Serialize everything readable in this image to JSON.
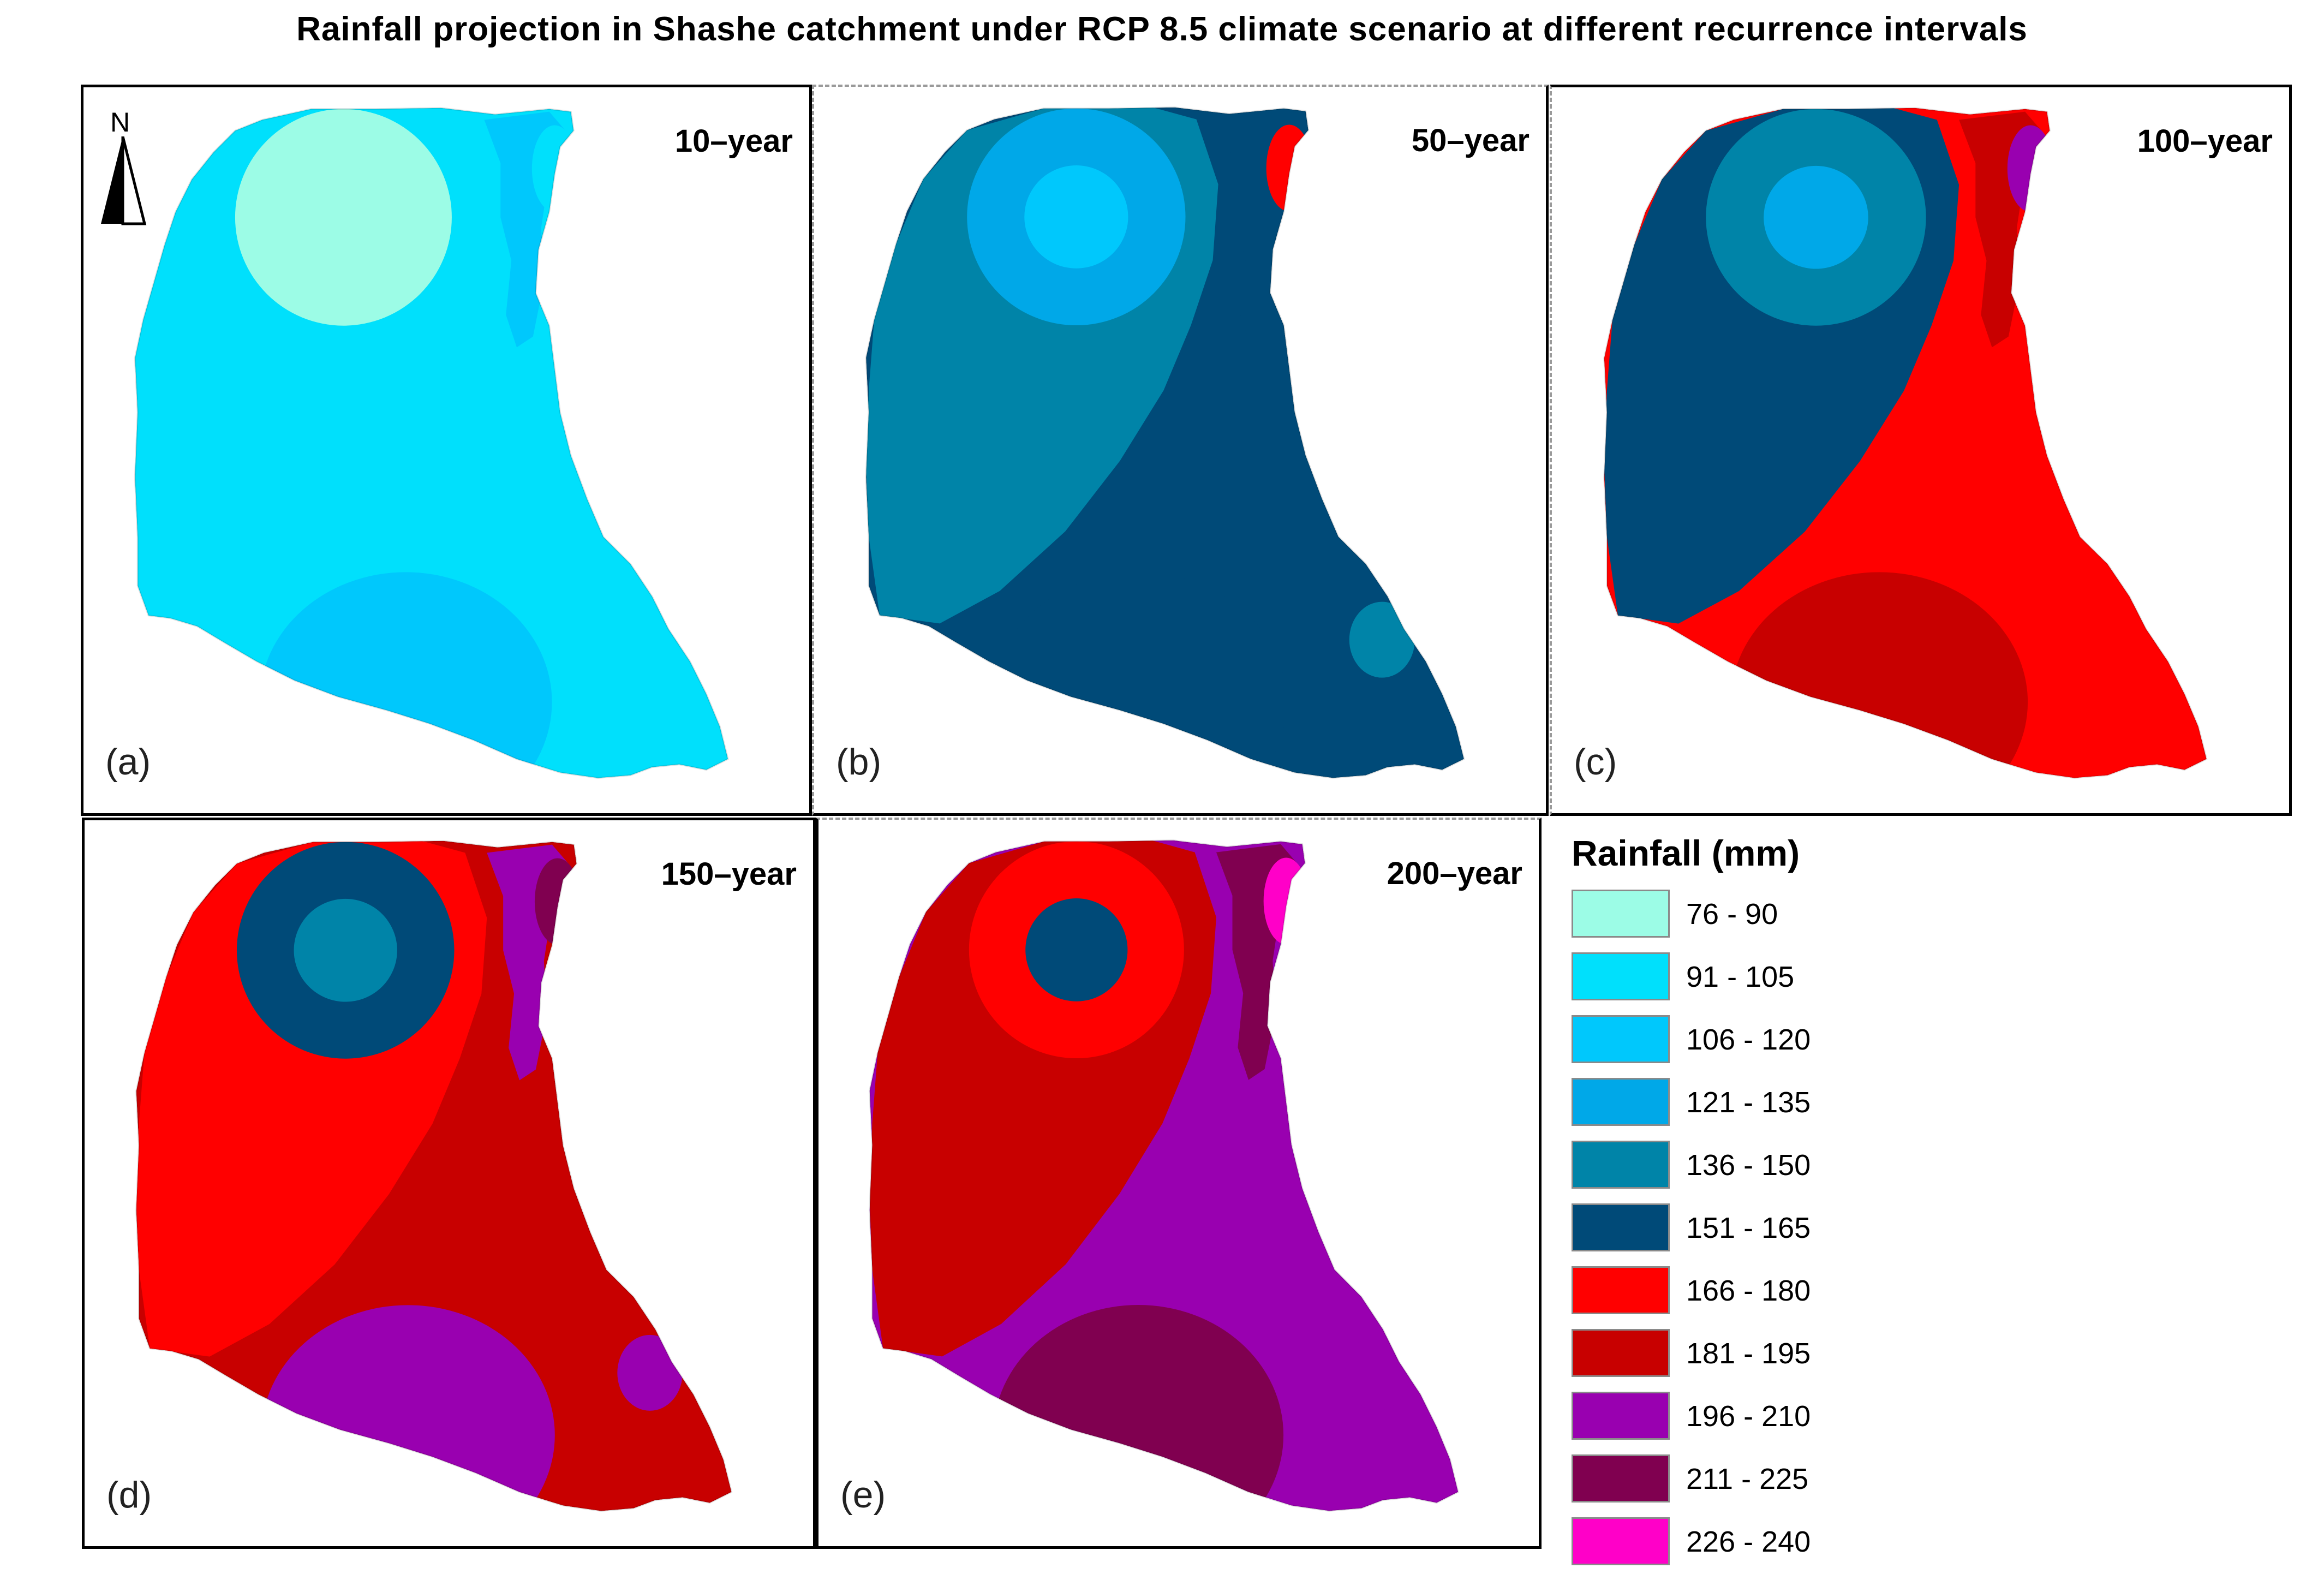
{
  "title": "Rainfall projection in Shashe catchment under RCP 8.5 climate scenario at different recurrence intervals",
  "north_label": "N",
  "legend": {
    "title": "Rainfall (mm)",
    "items": [
      {
        "label": "76 - 90",
        "color": "#9cfce6"
      },
      {
        "label": "91 - 105",
        "color": "#00e0fc"
      },
      {
        "label": "106 - 120",
        "color": "#00c8fc"
      },
      {
        "label": "121 - 135",
        "color": "#00a8e8"
      },
      {
        "label": "136 - 150",
        "color": "#0084a8"
      },
      {
        "label": "151 - 165",
        "color": "#004a78"
      },
      {
        "label": "166 - 180",
        "color": "#ff0000"
      },
      {
        "label": "181 - 195",
        "color": "#c80000"
      },
      {
        "label": "196 - 210",
        "color": "#9900b0"
      },
      {
        "label": "211 - 225",
        "color": "#800050"
      },
      {
        "label": "226 - 240",
        "color": "#ff00c8"
      }
    ]
  },
  "panels": [
    {
      "letter": "(a)",
      "year": "10–year",
      "base": "#00e0fc",
      "west": "#00e0fc",
      "east": "#00c8fc",
      "circle_outer": "#9cfce6",
      "circle_inner": "#9cfce6",
      "south": "#00c8fc",
      "ne_spot": "#00e0fc",
      "se_spot": "#00e0fc"
    },
    {
      "letter": "(b)",
      "year": "50–year",
      "base": "#004a78",
      "west": "#0084a8",
      "east": "#004a78",
      "circle_outer": "#00a8e8",
      "circle_inner": "#00c8fc",
      "south": "#004a78",
      "ne_spot": "#ff0000",
      "se_spot": "#0084a8"
    },
    {
      "letter": "(c)",
      "year": "100–year",
      "base": "#ff0000",
      "west": "#004a78",
      "east": "#c80000",
      "circle_outer": "#0084a8",
      "circle_inner": "#00a8e8",
      "south": "#c80000",
      "ne_spot": "#9900b0",
      "se_spot": "#ff0000"
    },
    {
      "letter": "(d)",
      "year": "150–year",
      "base": "#c80000",
      "west": "#ff0000",
      "east": "#9900b0",
      "circle_outer": "#004a78",
      "circle_inner": "#0084a8",
      "south": "#9900b0",
      "ne_spot": "#800050",
      "se_spot": "#9900b0"
    },
    {
      "letter": "(e)",
      "year": "200–year",
      "base": "#9900b0",
      "west": "#c80000",
      "east": "#800050",
      "circle_outer": "#ff0000",
      "circle_inner": "#004a78",
      "south": "#800050",
      "ne_spot": "#ff00c8",
      "se_spot": "#9900b0"
    }
  ]
}
